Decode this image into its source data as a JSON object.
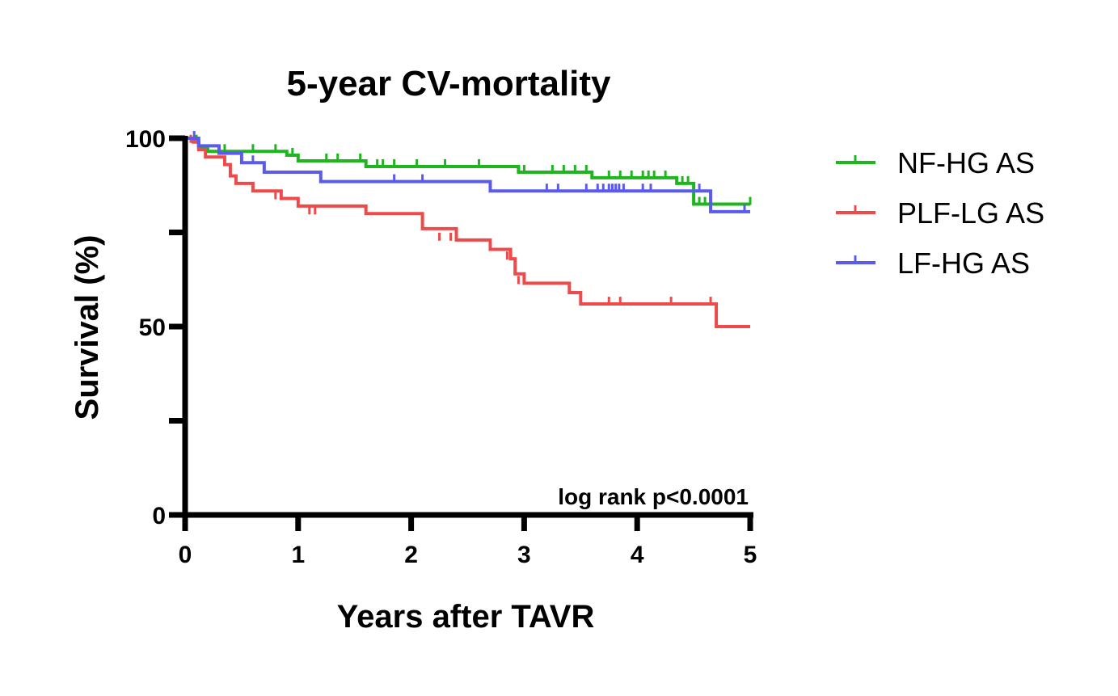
{
  "chart_data": {
    "type": "line",
    "title": "5-year CV-mortality",
    "xlabel": "Years after TAVR",
    "ylabel": "Survival (%)",
    "xlim": [
      0,
      5
    ],
    "ylim": [
      0,
      100
    ],
    "xticks": [
      0,
      1,
      2,
      3,
      4,
      5
    ],
    "xtick_labels": [
      "0",
      "1",
      "2",
      "3",
      "4",
      "5"
    ],
    "yticks": [
      0,
      25,
      50,
      75,
      100
    ],
    "ytick_labels": [
      "0",
      "",
      "50",
      "",
      "100"
    ],
    "grid": false,
    "step": true,
    "legend_position": "right",
    "annotation": "log rank p<0.0001",
    "series": [
      {
        "name": "NF-HG AS",
        "color": "#1fb51f",
        "x": [
          0,
          0.08,
          0.12,
          0.2,
          0.9,
          1.0,
          1.6,
          2.95,
          3.6,
          4.35,
          4.5,
          5.0
        ],
        "y": [
          100,
          99,
          97.5,
          96.5,
          95.5,
          94,
          92.5,
          91,
          89.5,
          88,
          82.5,
          82.5
        ],
        "censored": [
          [
            0.1,
            99
          ],
          [
            0.35,
            96.5
          ],
          [
            0.6,
            96.5
          ],
          [
            0.8,
            96.5
          ],
          [
            0.95,
            95.5
          ],
          [
            1.25,
            94
          ],
          [
            1.35,
            94
          ],
          [
            1.55,
            94
          ],
          [
            1.7,
            92.5
          ],
          [
            1.75,
            92.5
          ],
          [
            1.85,
            92.5
          ],
          [
            2.05,
            92.5
          ],
          [
            2.3,
            92.5
          ],
          [
            2.6,
            92.5
          ],
          [
            3.0,
            91
          ],
          [
            3.25,
            91
          ],
          [
            3.35,
            91
          ],
          [
            3.45,
            91
          ],
          [
            3.55,
            91
          ],
          [
            3.75,
            89.5
          ],
          [
            3.85,
            89.5
          ],
          [
            3.95,
            89.5
          ],
          [
            4.05,
            89.5
          ],
          [
            4.1,
            89.5
          ],
          [
            4.15,
            89.5
          ],
          [
            4.25,
            89.5
          ],
          [
            4.35,
            88
          ],
          [
            4.4,
            88
          ],
          [
            4.45,
            88
          ],
          [
            4.55,
            82.5
          ],
          [
            4.6,
            82.5
          ],
          [
            5.0,
            82.5
          ]
        ]
      },
      {
        "name": "PLF-LG AS",
        "color": "#ef4a4a",
        "x": [
          0,
          0.07,
          0.12,
          0.18,
          0.35,
          0.4,
          0.45,
          0.6,
          0.85,
          1.0,
          1.6,
          2.1,
          2.4,
          2.7,
          2.88,
          2.92,
          3.0,
          3.4,
          3.5,
          4.7,
          5.0
        ],
        "y": [
          100,
          99,
          97,
          95,
          93,
          90,
          88,
          86,
          84,
          82,
          80,
          76,
          73,
          70.5,
          68,
          64,
          61.5,
          59,
          56,
          50,
          50
        ],
        "censored": [
          [
            0.05,
            99
          ],
          [
            0.8,
            84
          ],
          [
            1.1,
            80
          ],
          [
            1.15,
            80
          ],
          [
            2.25,
            73
          ],
          [
            2.35,
            73
          ],
          [
            2.85,
            68
          ],
          [
            2.95,
            61.5
          ],
          [
            3.5,
            56
          ],
          [
            3.75,
            56
          ],
          [
            3.85,
            56
          ],
          [
            4.3,
            56
          ],
          [
            4.65,
            56
          ]
        ]
      },
      {
        "name": "LF-HG AS",
        "color": "#5a5aef",
        "x": [
          0,
          0.12,
          0.3,
          0.5,
          0.7,
          1.2,
          2.7,
          4.65,
          5.0
        ],
        "y": [
          100,
          98,
          96,
          93.5,
          91,
          88.5,
          86,
          80.5,
          80.5
        ],
        "censored": [
          [
            0.08,
            100
          ],
          [
            0.6,
            93.5
          ],
          [
            1.85,
            88.5
          ],
          [
            2.1,
            88.5
          ],
          [
            3.2,
            86
          ],
          [
            3.3,
            86
          ],
          [
            3.55,
            86
          ],
          [
            3.65,
            86
          ],
          [
            3.7,
            86
          ],
          [
            3.75,
            86
          ],
          [
            3.78,
            86
          ],
          [
            3.81,
            86
          ],
          [
            3.84,
            86
          ],
          [
            3.88,
            86
          ],
          [
            4.05,
            86
          ],
          [
            4.12,
            86
          ],
          [
            4.55,
            86
          ],
          [
            4.95,
            80.5
          ]
        ]
      }
    ]
  }
}
